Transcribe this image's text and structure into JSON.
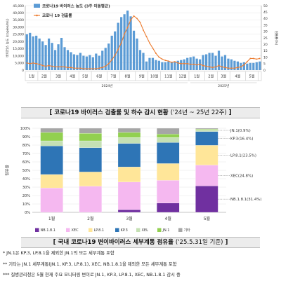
{
  "chart_data": [
    {
      "type": "bar",
      "title": "코로나19 바이러스 검출률 및 하수 감시 현황",
      "title_period": "('24년 ~ 25년 22주)",
      "ylabel_left": "바이러스 농도 (copies/mL)",
      "ylabel_right": "검출률(%)",
      "ylim_left": [
        0,
        45000
      ],
      "ylim_right": [
        0,
        50
      ],
      "yticks_left": [
        "0",
        "5,000",
        "10,000",
        "15,000",
        "20,000",
        "25,000",
        "30,000",
        "35,000",
        "40,000",
        "45,000"
      ],
      "yticks_right": [
        "0",
        "5",
        "10",
        "15",
        "20",
        "25",
        "30",
        "35",
        "40",
        "45",
        "50"
      ],
      "legend": [
        "코로나19 바이러스 농도 (3주 이동평균)",
        "코로나 19 검출률"
      ],
      "colors": {
        "bar": "#5b9bd5",
        "line": "#ed7d31"
      },
      "months": [
        "1월",
        "2월",
        "3월",
        "4월",
        "5월",
        "6월",
        "7월",
        "8월",
        "9월",
        "10월",
        "11월",
        "12월",
        "1월",
        "2월",
        "3월",
        "4월",
        "5월"
      ],
      "month_weeks": [
        4,
        4,
        5,
        4,
        4,
        5,
        4,
        5,
        4,
        4,
        5,
        4,
        5,
        4,
        4,
        5,
        4
      ],
      "year_labels": [
        "2024년",
        "2025년"
      ],
      "year_month_counts": [
        12,
        5
      ],
      "series": [
        {
          "name": "코로나19 바이러스 농도 (3주 이동평균)",
          "kind": "bar",
          "values": [
            25000,
            26000,
            23500,
            24000,
            22000,
            20000,
            17500,
            22000,
            19000,
            14000,
            18000,
            22500,
            16000,
            14000,
            12500,
            11000,
            10500,
            12000,
            10000,
            9500,
            10500,
            9000,
            11500,
            10000,
            13500,
            15500,
            18500,
            24000,
            27000,
            33000,
            37000,
            39000,
            41500,
            37500,
            27500,
            22000,
            14000,
            12000,
            6000,
            8500,
            8500,
            7000,
            6500,
            5500,
            5500,
            6000,
            5500,
            6000,
            6500,
            7000,
            7500,
            8500,
            9000,
            9500,
            8000,
            7500,
            10500,
            11000,
            12000,
            12000,
            10000,
            13500,
            9500,
            10500,
            8000,
            7500,
            6500,
            6000,
            5000,
            5500,
            4500,
            5000,
            5000,
            5500,
            6000
          ]
        },
        {
          "name": "코로나 19 검출률",
          "kind": "line",
          "values": [
            5.5,
            5,
            5.5,
            5,
            4.5,
            3.5,
            3,
            3.5,
            3,
            2.5,
            2.5,
            2.5,
            2.5,
            2,
            2,
            1.5,
            1.5,
            1.5,
            1,
            1,
            1,
            1,
            1,
            1.5,
            2,
            3,
            5,
            8,
            11.5,
            16,
            21,
            28,
            33,
            39,
            42,
            40,
            37,
            31,
            26,
            21,
            17,
            13,
            10,
            8.5,
            7.5,
            7,
            6,
            6.5,
            5.5,
            5,
            5,
            5,
            4.5,
            4.5,
            4,
            4.5,
            3.5,
            3,
            2.5,
            2,
            2.5,
            3.5,
            2.5,
            2,
            1.5,
            1.5,
            1.5,
            2,
            2.5,
            4,
            6.5,
            9,
            9,
            8.5,
            9
          ]
        }
      ]
    },
    {
      "type": "bar",
      "stacked": true,
      "title": "국내 코로나19 변이바이러스 세부계통 점유율",
      "title_period": "('25.5.31일 기준)",
      "ylabel": "점유율",
      "ylim": [
        0,
        100
      ],
      "yticks": [
        "0%",
        "10%",
        "20%",
        "30%",
        "40%",
        "50%",
        "60%",
        "70%",
        "80%",
        "90%",
        "100%"
      ],
      "categories": [
        "1월",
        "2월",
        "3월",
        "4월",
        "5월"
      ],
      "series": [
        {
          "name": "NB.1.8.1",
          "color": "#7030a0",
          "values": [
            0,
            0,
            3,
            11,
            31.4
          ]
        },
        {
          "name": "XEC",
          "color": "#f5b8f0",
          "values": [
            29,
            31,
            33,
            27,
            24.8
          ]
        },
        {
          "name": "LP.8.1",
          "color": "#ffe699",
          "values": [
            16,
            17,
            18,
            20,
            23.5
          ]
        },
        {
          "name": "KP.3",
          "color": "#2e75b6",
          "values": [
            34,
            29,
            28,
            25,
            16.4
          ]
        },
        {
          "name": "XEL",
          "color": "#c5e0b4",
          "values": [
            6,
            8,
            7,
            6,
            2.0
          ]
        },
        {
          "name": "JN.1",
          "color": "#92d050",
          "values": [
            10,
            9,
            6,
            4,
            0.9
          ]
        },
        {
          "name": "기타",
          "color": "#a6a6a6",
          "values": [
            5,
            6,
            5,
            7,
            1.0
          ]
        }
      ],
      "annotations": [
        "JN.1(0.9%)",
        "KP.3(16.4%)",
        "LP.8.1(23.5%)",
        "XEC(24.8%)",
        "NB.1.8.1(31.4%)"
      ]
    }
  ],
  "notes": [
    "* JN.1은 KP.3, LP.8.1을 제외한 JN.1의 모든 세부계통 포함",
    "** 기타는 JN.1 세부계통(JN.1, KP.3, LP.8.1), XEC, NB.1.8.1을 제외한 모든 세부계통 포함",
    "*** 질병관리청은 5월 현재 주요 모니터링 변이로 JN.1, KP.3, LP.8.1, XEC, NB.1.8.1 감시 중"
  ]
}
